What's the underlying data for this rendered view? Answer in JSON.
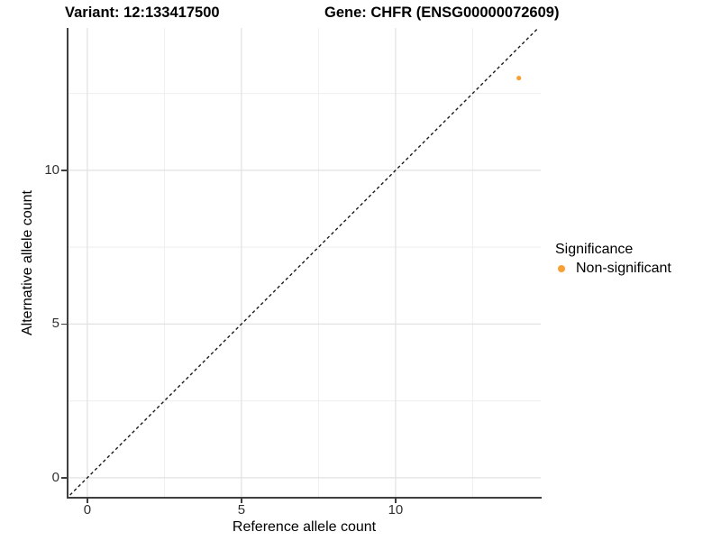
{
  "titles": {
    "variant": "Variant: 12:133417500",
    "gene": "Gene: CHFR (ENSG00000072609)"
  },
  "chart_data": {
    "type": "scatter",
    "xlabel": "Reference allele count",
    "ylabel": "Alternative allele count",
    "xlim": [
      -0.64,
      14.71
    ],
    "ylim": [
      -0.62,
      14.63
    ],
    "xticks": [
      0,
      5,
      10
    ],
    "yticks": [
      0,
      5,
      10
    ],
    "grid": {
      "major": [
        0,
        5,
        10
      ],
      "minor": [
        2.5,
        7.5,
        12.5
      ],
      "color_major": "#e2e2e2",
      "color_minor": "#eeeeee"
    },
    "identity_line": {
      "slope": 1,
      "intercept": 0,
      "style": "dashed",
      "color": "#1a1a1a"
    },
    "series": [
      {
        "name": "Non-significant",
        "color": "#F9A033",
        "point_radius": 2.6,
        "points": [
          {
            "x": 14,
            "y": 13
          }
        ]
      }
    ],
    "legend": {
      "title": "Significance",
      "position": "right",
      "entries": [
        {
          "label": "Non-significant",
          "color": "#F9A033"
        }
      ]
    }
  }
}
